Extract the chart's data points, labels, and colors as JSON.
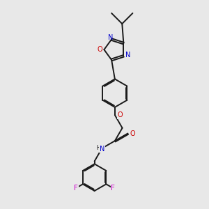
{
  "background_color": "#e8e8e8",
  "atom_colors": {
    "N": "#0000cc",
    "O": "#cc0000",
    "F": "#cc00cc",
    "H": "#008080"
  },
  "bond_color": "#1a1a1a",
  "bond_width": 1.4,
  "figsize": [
    3.0,
    3.0
  ],
  "dpi": 100,
  "xlim": [
    0,
    10
  ],
  "ylim": [
    0,
    10
  ]
}
